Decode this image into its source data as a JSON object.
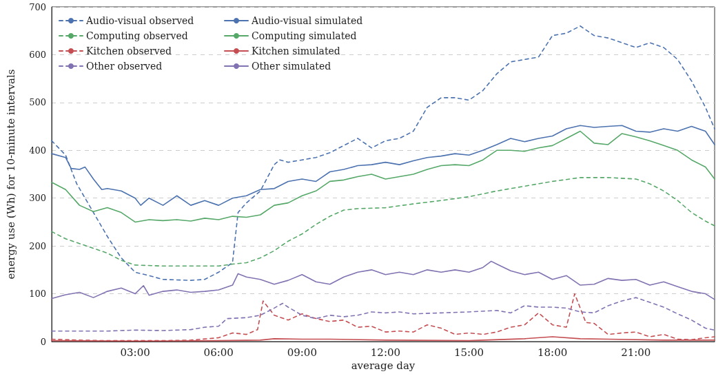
{
  "chart_data": {
    "type": "line",
    "xlabel": "average day",
    "ylabel": "energy use (Wh) for 10-minute intervals",
    "xlim": [
      0,
      23.83
    ],
    "xticks": [
      {
        "value": 3,
        "label": "03:00"
      },
      {
        "value": 6,
        "label": "06:00"
      },
      {
        "value": 9,
        "label": "09:00"
      },
      {
        "value": 12,
        "label": "12:00"
      },
      {
        "value": 15,
        "label": "15:00"
      },
      {
        "value": 18,
        "label": "18:00"
      },
      {
        "value": 21,
        "label": "21:00"
      }
    ],
    "ylim": [
      0,
      700
    ],
    "yticks": [
      0,
      100,
      200,
      300,
      400,
      500,
      600,
      700
    ],
    "grid": "y",
    "legend": "top left",
    "marker": "none",
    "series": [
      {
        "name": "Audio-visual observed",
        "color": "#4c72b0",
        "line_style": "dashed",
        "x": [
          0,
          0.5,
          0.9,
          1.5,
          2,
          2.5,
          3,
          3.5,
          4,
          5,
          5.5,
          6,
          6.5,
          6.7,
          7,
          7.5,
          8,
          8.2,
          8.5,
          9,
          9.5,
          10,
          10.5,
          11,
          11.5,
          12,
          12.5,
          13,
          13.5,
          14,
          14.5,
          15,
          15.5,
          16,
          16.5,
          17,
          17.5,
          18,
          18.5,
          19,
          19.5,
          20,
          20.5,
          21,
          21.5,
          22,
          22.5,
          23,
          23.5,
          23.83
        ],
        "values": [
          420,
          390,
          330,
          270,
          220,
          175,
          145,
          138,
          130,
          128,
          130,
          145,
          165,
          270,
          290,
          315,
          370,
          380,
          375,
          380,
          385,
          395,
          410,
          425,
          405,
          420,
          425,
          440,
          490,
          510,
          510,
          505,
          525,
          560,
          585,
          590,
          595,
          640,
          645,
          660,
          640,
          635,
          625,
          615,
          625,
          615,
          590,
          545,
          490,
          445
        ]
      },
      {
        "name": "Computing observed",
        "color": "#55a868",
        "line_style": "dashed",
        "x": [
          0,
          0.5,
          1,
          1.5,
          2,
          2.5,
          3,
          4,
          5,
          6,
          6.5,
          7,
          7.5,
          8,
          8.5,
          9,
          9.5,
          10,
          10.5,
          11,
          12,
          13,
          14,
          15,
          16,
          17,
          18,
          19,
          20,
          21,
          21.5,
          22,
          22.5,
          23,
          23.5,
          23.83
        ],
        "values": [
          230,
          215,
          205,
          195,
          185,
          170,
          160,
          158,
          158,
          158,
          162,
          165,
          175,
          190,
          210,
          225,
          245,
          262,
          275,
          278,
          280,
          288,
          295,
          303,
          315,
          325,
          335,
          343,
          343,
          340,
          330,
          315,
          295,
          270,
          252,
          242
        ]
      },
      {
        "name": "Kitchen observed",
        "color": "#c44e52",
        "line_style": "dashed",
        "x": [
          0,
          1,
          2,
          3,
          4,
          5,
          6,
          6.5,
          7,
          7.4,
          7.6,
          8,
          8.5,
          9,
          9.5,
          10,
          10.5,
          11,
          11.5,
          12,
          12.5,
          13,
          13.5,
          14,
          14.5,
          15,
          15.5,
          16,
          16.5,
          17,
          17.5,
          18,
          18.5,
          18.8,
          19.2,
          19.5,
          20,
          20.5,
          21,
          21.5,
          22,
          22.5,
          23,
          23.5,
          23.83
        ],
        "values": [
          5,
          3,
          2,
          2,
          2,
          3,
          8,
          18,
          15,
          25,
          85,
          55,
          45,
          58,
          48,
          42,
          45,
          30,
          32,
          20,
          22,
          20,
          35,
          28,
          15,
          18,
          15,
          20,
          30,
          35,
          60,
          35,
          30,
          100,
          40,
          38,
          15,
          18,
          20,
          10,
          15,
          5,
          4,
          8,
          10
        ]
      },
      {
        "name": "Other observed",
        "color": "#8172b2",
        "line_style": "dashed",
        "x": [
          0,
          1,
          2,
          3,
          4,
          5,
          5.5,
          6,
          6.3,
          7,
          7.5,
          8,
          8.3,
          8.5,
          9,
          9.5,
          10,
          10.5,
          11,
          11.5,
          12,
          12.5,
          13,
          14,
          15,
          16,
          16.5,
          17,
          17.5,
          18,
          18.5,
          19,
          19.5,
          20,
          20.5,
          21,
          21.5,
          22,
          22.5,
          23,
          23.5,
          23.83
        ],
        "values": [
          22,
          22,
          22,
          24,
          23,
          25,
          30,
          32,
          48,
          50,
          55,
          70,
          80,
          72,
          55,
          48,
          55,
          52,
          55,
          62,
          60,
          62,
          58,
          60,
          62,
          65,
          60,
          75,
          72,
          72,
          70,
          62,
          60,
          75,
          85,
          92,
          82,
          72,
          58,
          45,
          28,
          24
        ]
      },
      {
        "name": "Audio-visual simulated",
        "color": "#4c72b0",
        "line_style": "solid",
        "x": [
          0,
          0.5,
          0.7,
          1,
          1.2,
          1.5,
          1.8,
          2,
          2.5,
          3,
          3.2,
          3.5,
          4,
          4.5,
          5,
          5.5,
          6,
          6.5,
          7,
          7.5,
          8,
          8.5,
          9,
          9.5,
          10,
          10.5,
          11,
          11.5,
          12,
          12.5,
          13,
          13.5,
          14,
          14.5,
          15,
          15.5,
          16,
          16.5,
          17,
          17.5,
          18,
          18.5,
          19,
          19.5,
          20,
          20.5,
          21,
          21.5,
          22,
          22.5,
          23,
          23.5,
          23.83
        ],
        "values": [
          393,
          385,
          362,
          360,
          365,
          340,
          318,
          320,
          315,
          300,
          285,
          300,
          285,
          305,
          285,
          295,
          285,
          300,
          305,
          318,
          320,
          335,
          340,
          335,
          355,
          360,
          368,
          370,
          375,
          370,
          378,
          385,
          388,
          393,
          390,
          400,
          412,
          425,
          418,
          425,
          430,
          445,
          452,
          448,
          450,
          452,
          440,
          438,
          445,
          440,
          450,
          440,
          412
        ]
      },
      {
        "name": "Computing simulated",
        "color": "#55a868",
        "line_style": "solid",
        "x": [
          0,
          0.5,
          1,
          1.5,
          2,
          2.5,
          3,
          3.5,
          4,
          4.5,
          5,
          5.5,
          6,
          6.5,
          7,
          7.5,
          8,
          8.5,
          9,
          9.5,
          10,
          10.5,
          11,
          11.5,
          12,
          12.5,
          13,
          13.5,
          14,
          14.5,
          15,
          15.5,
          16,
          16.5,
          17,
          17.5,
          18,
          18.5,
          19,
          19.5,
          20,
          20.5,
          21,
          21.5,
          22,
          22.5,
          23,
          23.5,
          23.83
        ],
        "values": [
          333,
          318,
          285,
          272,
          280,
          270,
          250,
          255,
          253,
          255,
          252,
          258,
          255,
          262,
          260,
          265,
          285,
          290,
          305,
          315,
          335,
          338,
          345,
          350,
          340,
          345,
          350,
          360,
          368,
          370,
          368,
          380,
          400,
          400,
          398,
          405,
          410,
          425,
          440,
          415,
          412,
          435,
          428,
          420,
          410,
          400,
          380,
          365,
          340
        ]
      },
      {
        "name": "Kitchen simulated",
        "color": "#c44e52",
        "line_style": "solid",
        "x": [
          0,
          3,
          6,
          7.5,
          8,
          9,
          10,
          12,
          15,
          17,
          18,
          19,
          20,
          22,
          23.83
        ],
        "values": [
          2,
          1,
          2,
          3,
          6,
          5,
          5,
          3,
          2,
          6,
          10,
          6,
          5,
          3,
          3
        ]
      },
      {
        "name": "Other simulated",
        "color": "#8172b2",
        "line_style": "solid",
        "x": [
          0,
          0.5,
          1,
          1.5,
          2,
          2.5,
          3,
          3.3,
          3.5,
          4,
          4.5,
          5,
          5.5,
          6,
          6.5,
          6.7,
          7,
          7.5,
          8,
          8.5,
          9,
          9.5,
          10,
          10.5,
          11,
          11.5,
          12,
          12.5,
          13,
          13.5,
          14,
          14.5,
          15,
          15.5,
          15.8,
          16,
          16.5,
          17,
          17.5,
          18,
          18.5,
          19,
          19.5,
          20,
          20.5,
          21,
          21.5,
          22,
          22.5,
          23,
          23.5,
          23.83
        ],
        "values": [
          90,
          98,
          103,
          92,
          105,
          112,
          100,
          117,
          97,
          105,
          108,
          103,
          105,
          108,
          118,
          142,
          135,
          130,
          120,
          128,
          140,
          125,
          120,
          135,
          145,
          150,
          140,
          145,
          140,
          150,
          145,
          150,
          145,
          155,
          168,
          162,
          148,
          140,
          145,
          130,
          138,
          118,
          120,
          132,
          128,
          130,
          118,
          125,
          115,
          105,
          100,
          88
        ]
      }
    ]
  }
}
